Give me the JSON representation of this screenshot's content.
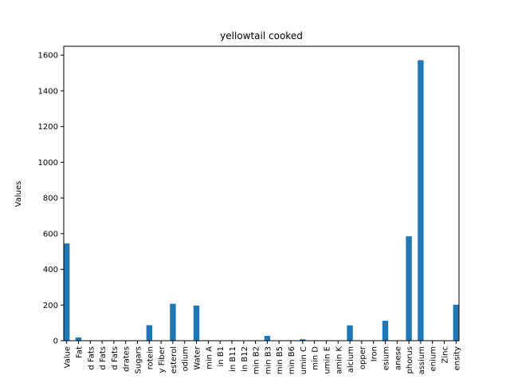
{
  "chart_data": {
    "type": "bar",
    "title": "yellowtail cooked",
    "xlabel": "",
    "ylabel": "Values",
    "ylim": [
      0,
      1650
    ],
    "yticks": [
      0,
      200,
      400,
      600,
      800,
      1000,
      1200,
      1400,
      1600
    ],
    "bar_color": "#1f77b4",
    "grid": false,
    "categories": [
      "Value",
      "Fat",
      "d Fats",
      "d Fats",
      "d Fats",
      "drates",
      "Sugars",
      "rotein",
      "y Fiber",
      "esterol",
      "odium",
      "Water",
      "min A",
      "in B1",
      "in B11",
      "in B12",
      "min B2",
      "min B3",
      "min B5",
      "min B6",
      "umin C",
      "min D",
      "umin E",
      "amin K",
      "alcium",
      "opper",
      "Iron",
      "esium",
      "anese",
      "phorus",
      "assium",
      "enium",
      "Zinc",
      "ensity"
    ],
    "values": [
      545,
      18,
      0,
      0,
      0,
      0,
      0,
      87,
      0,
      207,
      0,
      197,
      0,
      0,
      0,
      0,
      0,
      27,
      0,
      0,
      8,
      0,
      0,
      0,
      86,
      0,
      0,
      112,
      0,
      585,
      1572,
      0,
      0,
      202
    ]
  }
}
